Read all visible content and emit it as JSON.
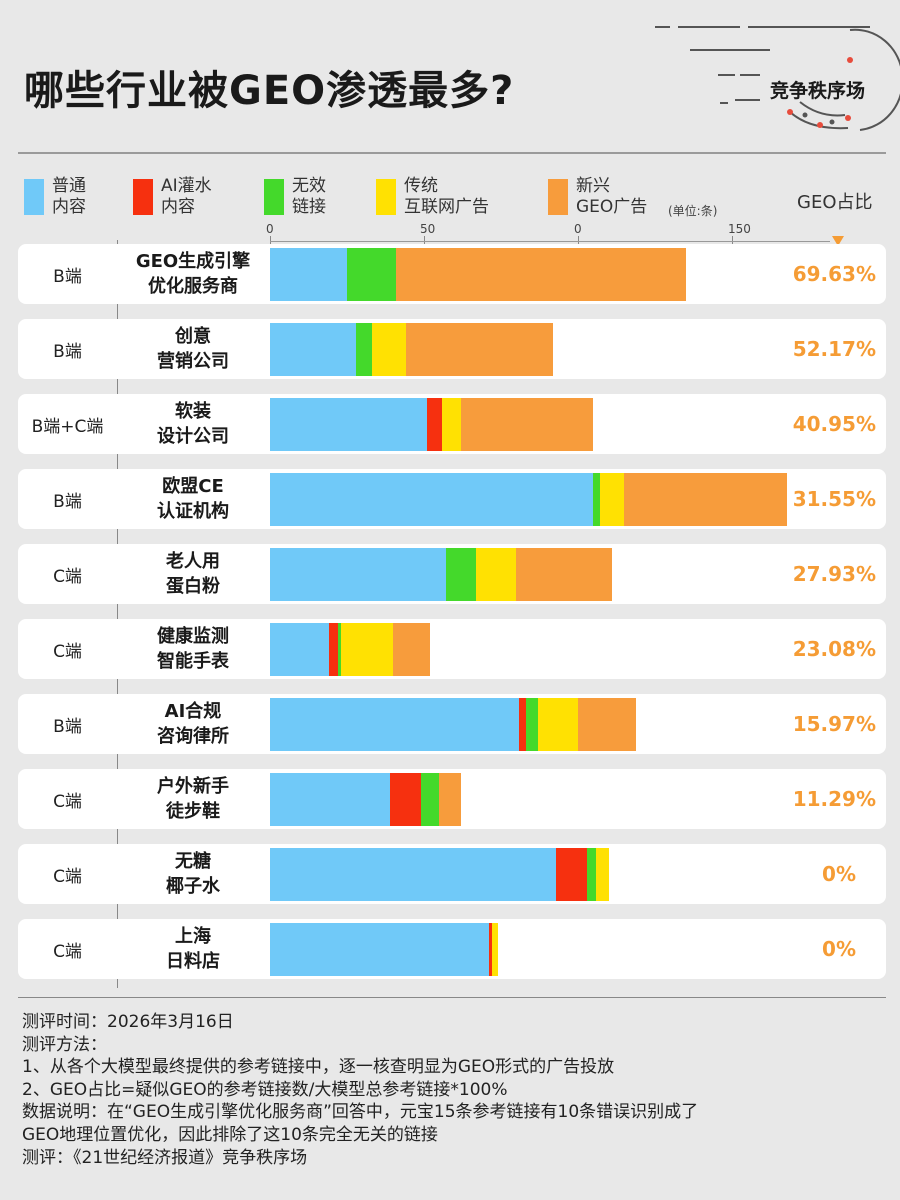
{
  "title": "哪些行业被GEO渗透最多?",
  "brand": "竞争秩序场",
  "colors": {
    "normal": "#70c9f8",
    "ai_flood": "#f6300f",
    "invalid": "#44d92b",
    "traditional": "#ffe102",
    "new_geo": "#f79c3c",
    "geo_pct": "#f59c35"
  },
  "legend": {
    "normal": "普通\n内容",
    "ai_flood": "AI灌水\n内容",
    "invalid": "无效\n链接",
    "traditional": "传统\n互联网广告",
    "new_geo": "新兴\nGEO广告",
    "unit": "(单位:条)",
    "geo_header": "GEO占比"
  },
  "axis_ticks": [
    "0",
    "50",
    "0",
    "150"
  ],
  "chart_data": {
    "type": "bar",
    "orientation": "horizontal",
    "stacked": true,
    "x_ticks": [
      "0",
      "50",
      "0",
      "150"
    ],
    "segments": [
      "普通内容",
      "AI灌水内容",
      "无效链接",
      "传统互联网广告",
      "新兴GEO广告"
    ],
    "rows": [
      {
        "side": "B端",
        "name1": "GEO生成引擎",
        "name2": "优化服务商",
        "values": [
          25,
          0,
          16,
          0,
          94
        ],
        "geo_pct": "69.63%"
      },
      {
        "side": "B端",
        "name1": "创意",
        "name2": "营销公司",
        "values": [
          28,
          0,
          5,
          11,
          48
        ],
        "geo_pct": "52.17%"
      },
      {
        "side": "B端+C端",
        "name1": "软装",
        "name2": "设计公司",
        "values": [
          51,
          5,
          0,
          6,
          43
        ],
        "geo_pct": "40.95%"
      },
      {
        "side": "B端",
        "name1": "欧盟CE",
        "name2": "认证机构",
        "values": [
          105,
          0,
          2,
          8,
          53
        ],
        "geo_pct": "31.55%"
      },
      {
        "side": "C端",
        "name1": "老人用",
        "name2": "蛋白粉",
        "values": [
          57,
          0,
          10,
          13,
          31
        ],
        "geo_pct": "27.93%"
      },
      {
        "side": "C端",
        "name1": "健康监测",
        "name2": "智能手表",
        "values": [
          19,
          3,
          1,
          17,
          12
        ],
        "geo_pct": "23.08%"
      },
      {
        "side": "B端",
        "name1": "AI合规",
        "name2": "咨询律所",
        "values": [
          81,
          2,
          4,
          13,
          19
        ],
        "geo_pct": "15.97%"
      },
      {
        "side": "C端",
        "name1": "户外新手",
        "name2": "徒步鞋",
        "values": [
          39,
          10,
          6,
          0,
          7
        ],
        "geo_pct": "11.29%"
      },
      {
        "side": "C端",
        "name1": "无糖",
        "name2": "椰子水",
        "values": [
          93,
          10,
          3,
          4,
          0
        ],
        "geo_pct": "0%"
      },
      {
        "side": "C端",
        "name1": "上海",
        "name2": "日料店",
        "values": [
          71,
          1,
          0,
          2,
          0
        ],
        "geo_pct": "0%"
      }
    ]
  },
  "notes": {
    "line1": "测评时间：2026年3月16日",
    "line2": "测评方法：",
    "line3": "1、从各个大模型最终提供的参考链接中，逐一核查明显为GEO形式的广告投放",
    "line4": "2、GEO占比=疑似GEO的参考链接数/大模型总参考链接*100%",
    "line5": "数据说明：在“GEO生成引擎优化服务商”回答中，元宝15条参考链接有10条错误识别成了",
    "line6": "GEO地理位置优化，因此排除了这10条完全无关的链接",
    "line7": "测评：《21世纪经济报道》竞争秩序场"
  }
}
